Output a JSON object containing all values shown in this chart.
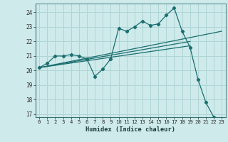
{
  "xlabel": "Humidex (Indice chaleur)",
  "bg_color": "#ceeaeb",
  "grid_color": "#b0d5d5",
  "line_color": "#1a6e6e",
  "xlim": [
    -0.5,
    23.5
  ],
  "ylim": [
    16.8,
    24.6
  ],
  "yticks": [
    17,
    18,
    19,
    20,
    21,
    22,
    23,
    24
  ],
  "xticks": [
    0,
    1,
    2,
    3,
    4,
    5,
    6,
    7,
    8,
    9,
    10,
    11,
    12,
    13,
    14,
    15,
    16,
    17,
    18,
    19,
    20,
    21,
    22,
    23
  ],
  "series1_x": [
    0,
    1,
    2,
    3,
    4,
    5,
    6,
    7,
    8,
    9,
    10,
    11,
    12,
    13,
    14,
    15,
    16,
    17,
    18,
    19,
    20,
    21,
    22,
    23
  ],
  "series1_y": [
    20.2,
    20.5,
    21.0,
    21.0,
    21.1,
    21.0,
    20.8,
    19.6,
    20.1,
    20.8,
    22.9,
    22.7,
    23.0,
    23.4,
    23.1,
    23.2,
    23.8,
    24.3,
    22.7,
    21.6,
    19.4,
    17.8,
    16.8,
    16.7
  ],
  "series2_x": [
    0,
    23
  ],
  "series2_y": [
    20.2,
    22.7
  ],
  "series3_x": [
    0,
    19
  ],
  "series3_y": [
    20.2,
    22.0
  ],
  "series4_x": [
    0,
    19
  ],
  "series4_y": [
    20.2,
    21.7
  ]
}
